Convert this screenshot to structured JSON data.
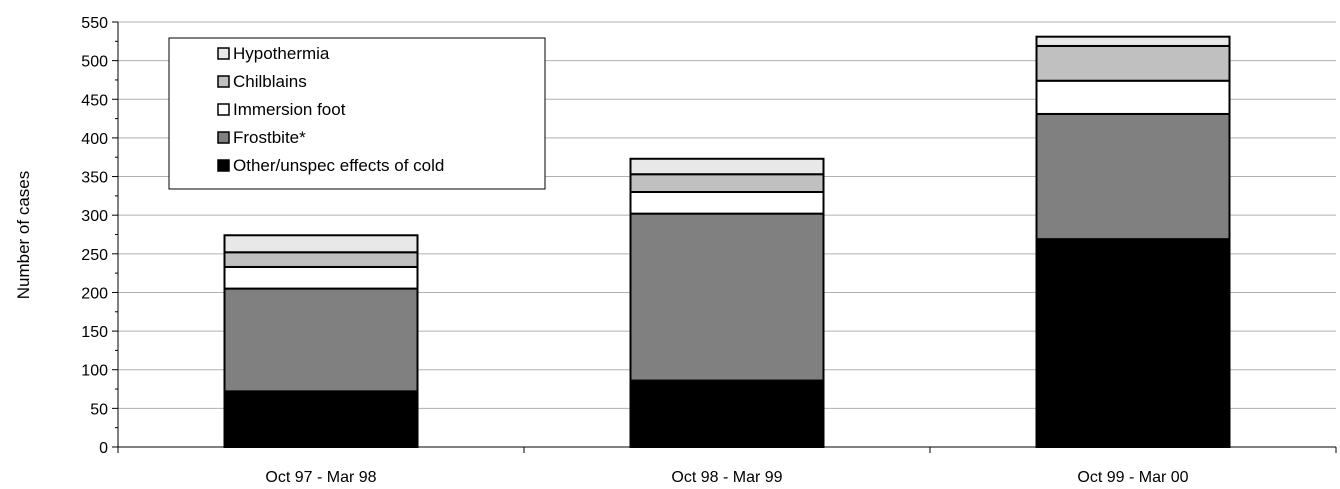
{
  "chart_data": {
    "type": "bar",
    "stacked": true,
    "categories": [
      "Oct 97 - Mar 98",
      "Oct 98 - Mar 99",
      "Oct 99 - Mar 00"
    ],
    "series": [
      {
        "name": "Other/unspec effects of cold",
        "color": "#000000",
        "values": [
          72,
          86,
          269
        ]
      },
      {
        "name": "Frostbite*",
        "color": "#808080",
        "values": [
          133,
          216,
          162
        ]
      },
      {
        "name": "Immersion foot",
        "color": "#ffffff",
        "values": [
          28,
          28,
          43
        ]
      },
      {
        "name": "Chilblains",
        "color": "#c0c0c0",
        "values": [
          19,
          23,
          45
        ]
      },
      {
        "name": "Hypothermia",
        "color": "#e8e8e8",
        "values": [
          22,
          20,
          12
        ]
      }
    ],
    "legend_order": [
      "Hypothermia",
      "Chilblains",
      "Immersion foot",
      "Frostbite*",
      "Other/unspec effects of cold"
    ],
    "legend_position": "top-left",
    "ylabel": "Number of cases",
    "xlabel": "",
    "ylim": [
      0,
      550
    ],
    "ytick_step": 50,
    "yticks": [
      "0",
      "50",
      "100",
      "150",
      "200",
      "250",
      "300",
      "350",
      "400",
      "450",
      "500",
      "550"
    ],
    "grid": true
  }
}
